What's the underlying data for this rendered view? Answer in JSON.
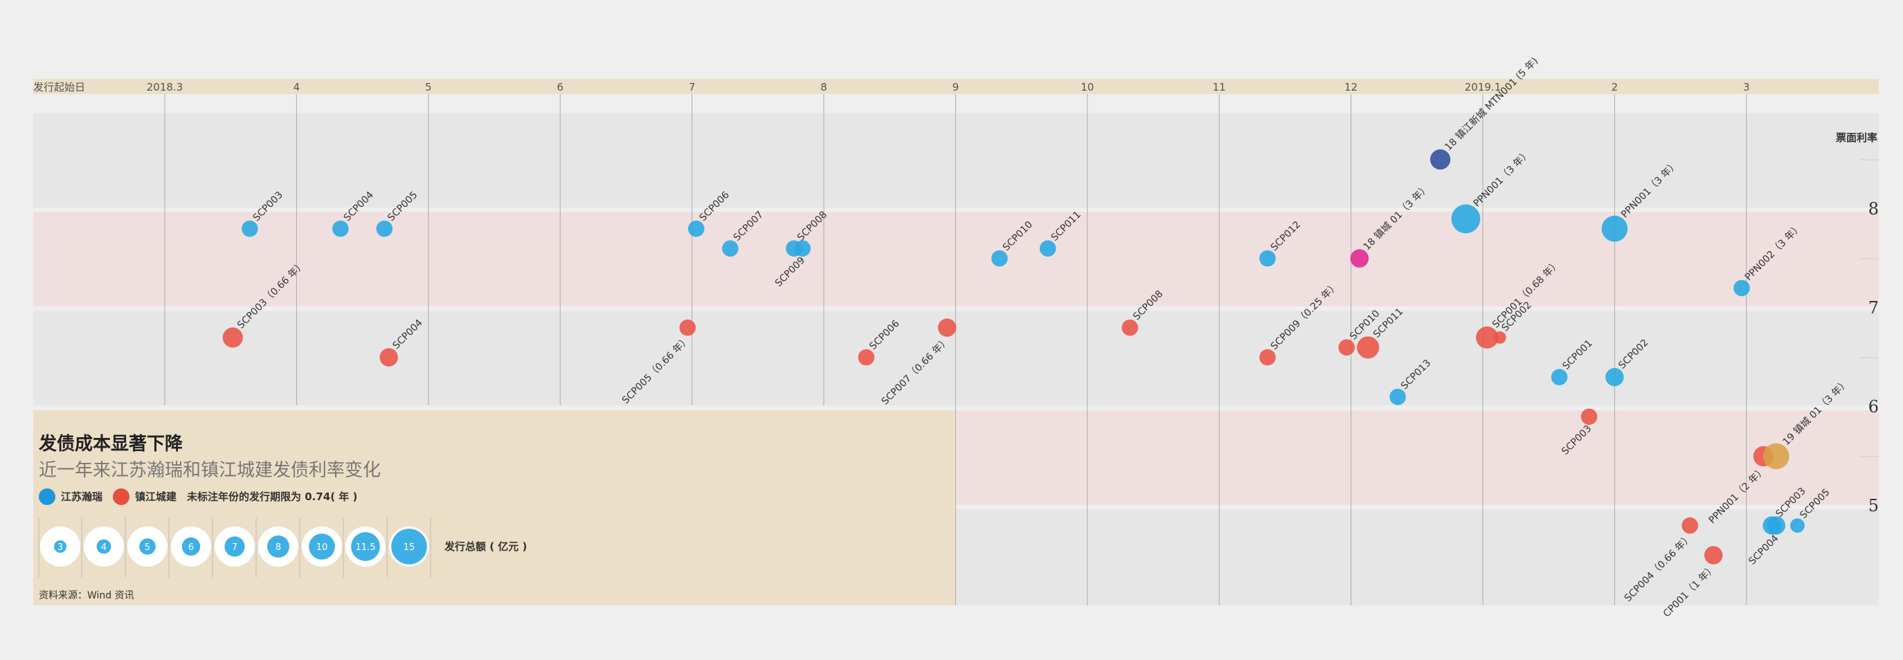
{
  "chart_data": {
    "type": "scatter",
    "title": "发债成本显著下降",
    "subtitle": "近一年来江苏瀚瑞和镇江城建发债利率变化",
    "xlabel": "发行起始日",
    "ylabel": "票面利率",
    "x_ticks": [
      "2018.3",
      "4",
      "5",
      "6",
      "7",
      "8",
      "9",
      "10",
      "11",
      "12",
      "2019.1",
      "2",
      "3"
    ],
    "y_ticks": [
      "8",
      "7",
      "6",
      "5"
    ],
    "legend": [
      "江苏瀚瑞",
      "镇江城建"
    ],
    "note": "未标注年份的发行期限为 0.74( 年 )",
    "size_legend_values": [
      "3",
      "4",
      "5",
      "6",
      "7",
      "8",
      "10",
      "11.5",
      "15"
    ],
    "size_legend_title": "发行总额 ( 亿元 )",
    "source": "资料来源：Wind 资讯",
    "colors": {
      "江苏瀚瑞": "#27a7e3",
      "镇江城建": "#ea5347",
      "MTN": "#2f4f9f",
      "镇城": "#e0258f",
      "PPN19": "#d9a045"
    },
    "series": [
      {
        "name": "江苏瀚瑞",
        "points": [
          {
            "label": "SCP003",
            "date": "2018-03-21",
            "rate": 7.8,
            "amount": 5
          },
          {
            "label": "SCP004",
            "date": "2018-04-11",
            "rate": 7.8,
            "amount": 5
          },
          {
            "label": "SCP005",
            "date": "2018-04-21",
            "rate": 7.8,
            "amount": 5
          },
          {
            "label": "SCP006",
            "date": "2018-07-02",
            "rate": 7.8,
            "amount": 5
          },
          {
            "label": "SCP007",
            "date": "2018-07-10",
            "rate": 7.6,
            "amount": 5
          },
          {
            "label": "SCP008",
            "date": "2018-07-25",
            "rate": 7.6,
            "amount": 5
          },
          {
            "label": "SCP009",
            "date": "2018-07-27",
            "rate": 7.6,
            "amount": 5
          },
          {
            "label": "SCP010",
            "date": "2018-09-11",
            "rate": 7.5,
            "amount": 5
          },
          {
            "label": "SCP011",
            "date": "2018-09-22",
            "rate": 7.6,
            "amount": 5
          },
          {
            "label": "SCP012",
            "date": "2018-11-12",
            "rate": 7.5,
            "amount": 5
          },
          {
            "label": "SCP013",
            "date": "2018-12-12",
            "rate": 6.1,
            "amount": 5
          },
          {
            "label": "PPN001（3 年）",
            "date": "2018-12-28",
            "rate": 7.9,
            "amount": 11.5
          },
          {
            "label": "SCP001",
            "date": "2019-01-19",
            "rate": 6.3,
            "amount": 5
          },
          {
            "label": "PPN001（3 年）",
            "date": "2019-02-01",
            "rate": 7.8,
            "amount": 10
          },
          {
            "label": "SCP002",
            "date": "2019-02-01",
            "rate": 6.3,
            "amount": 6
          },
          {
            "label": "PPN002（3 年）",
            "date": "2019-02-28",
            "rate": 7.2,
            "amount": 5
          },
          {
            "label": "SCP003",
            "date": "2019-03-07",
            "rate": 4.8,
            "amount": 6
          },
          {
            "label": "SCP004",
            "date": "2019-03-08",
            "rate": 4.8,
            "amount": 6
          },
          {
            "label": "SCP005",
            "date": "2019-03-13",
            "rate": 4.8,
            "amount": 4
          }
        ]
      },
      {
        "name": "镇江城建",
        "points": [
          {
            "label": "SCP003（0.66 年）",
            "date": "2018-03-17",
            "rate": 6.7,
            "amount": 7
          },
          {
            "label": "SCP004",
            "date": "2018-04-22",
            "rate": 6.5,
            "amount": 6
          },
          {
            "label": "SCP005（0.66 年）",
            "date": "2018-06-30",
            "rate": 6.8,
            "amount": 5
          },
          {
            "label": "SCP006",
            "date": "2018-08-11",
            "rate": 6.5,
            "amount": 5
          },
          {
            "label": "SCP007（0.66 年）",
            "date": "2018-08-30",
            "rate": 6.8,
            "amount": 6
          },
          {
            "label": "SCP008",
            "date": "2018-10-11",
            "rate": 6.8,
            "amount": 5
          },
          {
            "label": "SCP009（0.25 年）",
            "date": "2018-11-12",
            "rate": 6.5,
            "amount": 5
          },
          {
            "label": "SCP010",
            "date": "2018-11-30",
            "rate": 6.6,
            "amount": 5
          },
          {
            "label": "SCP011",
            "date": "2018-12-05",
            "rate": 6.6,
            "amount": 8
          },
          {
            "label": "SCP001（0.68 年）",
            "date": "2019-01-02",
            "rate": 6.7,
            "amount": 8
          },
          {
            "label": "SCP002",
            "date": "2019-01-05",
            "rate": 6.7,
            "amount": 3
          },
          {
            "label": "SCP003",
            "date": "2019-01-26",
            "rate": 5.9,
            "amount": 5
          },
          {
            "label": "SCP004（0.66 年）",
            "date": "2019-02-17",
            "rate": 4.8,
            "amount": 5
          },
          {
            "label": "CP001（1 年）",
            "date": "2019-02-22",
            "rate": 4.5,
            "amount": 6
          },
          {
            "label": "PPN001（2 年）",
            "date": "2019-03-05",
            "rate": 5.5,
            "amount": 7
          }
        ]
      },
      {
        "name": "18 镇江新城 MTN001 (5 年)",
        "points": [
          {
            "label": "18 镇江新城 MTN001 (5 年)",
            "date": "2018-12-22",
            "rate": 8.5,
            "amount": 7
          }
        ]
      },
      {
        "name": "18 镇城 01（3 年）",
        "points": [
          {
            "label": "18 镇城 01（3 年）",
            "date": "2018-12-03",
            "rate": 7.5,
            "amount": 6
          }
        ]
      },
      {
        "name": "19 镇城 01（3 年）",
        "points": [
          {
            "label": "19 镇城 01（3 年）",
            "date": "2019-03-08",
            "rate": 5.5,
            "amount": 10
          }
        ]
      }
    ]
  }
}
